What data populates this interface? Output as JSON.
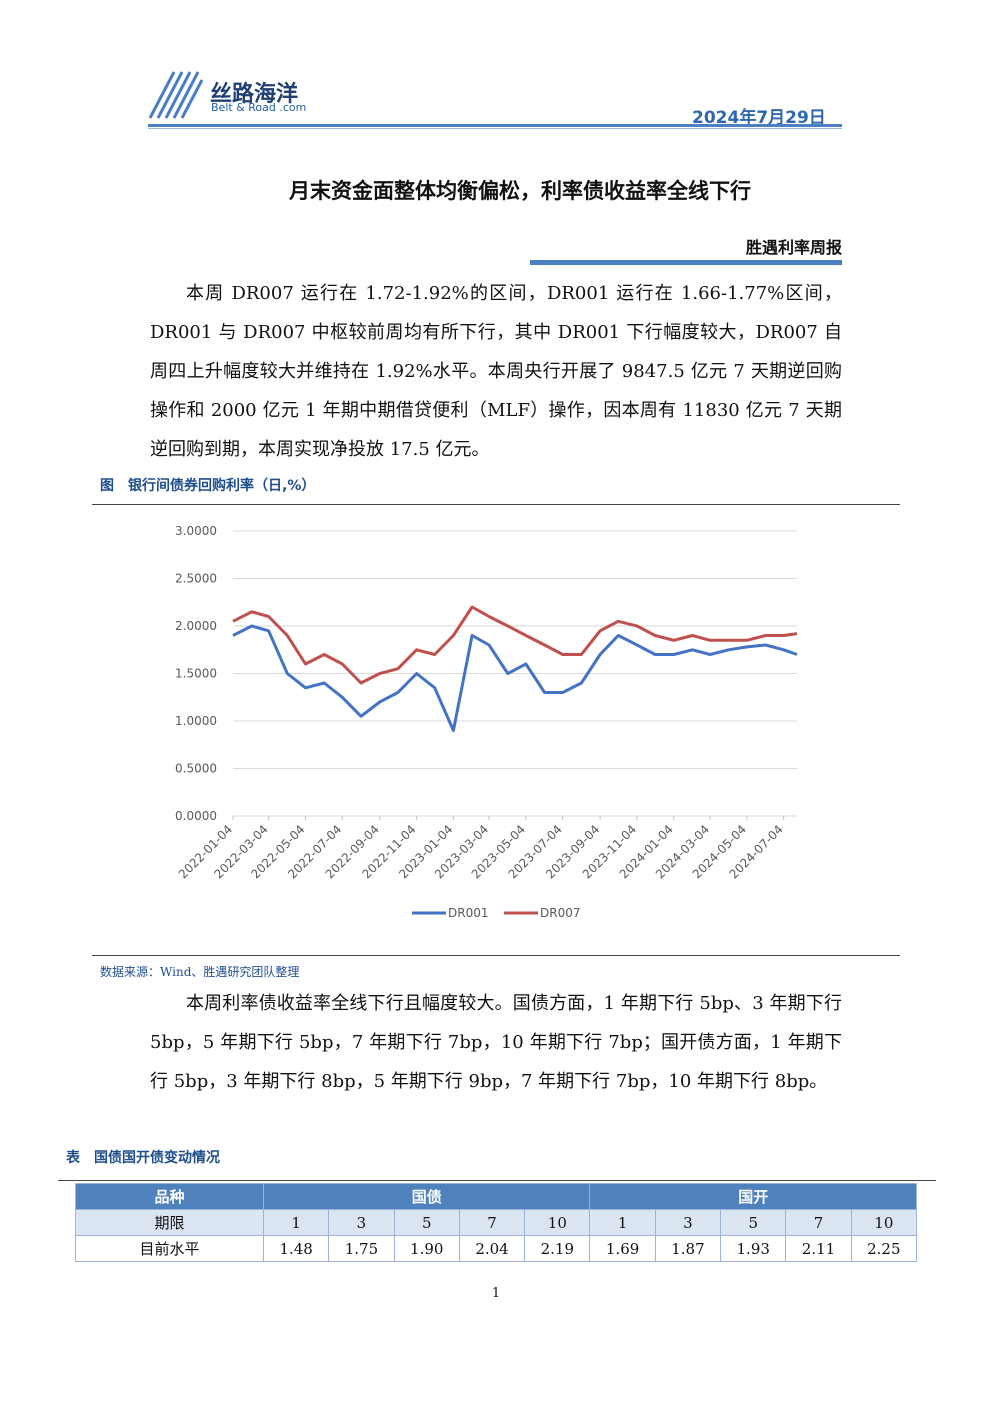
{
  "header": {
    "brand": "丝路海洋",
    "brand_sub": "Belt & Road .com",
    "date": "2024年7月29日",
    "title": "月末资金面整体均衡偏松，利率债收益率全线下行",
    "report": "胜遇利率周报"
  },
  "paragraphs": [
    "本周 DR007 运行在 1.72-1.92%的区间，DR001 运行在 1.66-1.77%区间，DR001 与 DR007 中枢较前周均有所下行，其中 DR001 下行幅度较大，DR007 自周四上升幅度较大并维持在 1.92%水平。本周央行开展了 9847.5 亿元 7 天期逆回购操作和 2000 亿元 1 年期中期借贷便利（MLF）操作，因本周有 11830 亿元 7 天期逆回购到期，本周实现净投放 17.5 亿元。",
    "本周利率债收益率全线下行且幅度较大。国债方面，1 年期下行 5bp、3 年期下行 5bp，5 年期下行 5bp，7 年期下行 7bp，10 年期下行 7bp；国开债方面，1 年期下行 5bp，3 年期下行 8bp，5 年期下行 9bp，7 年期下行 7bp，10 年期下行 8bp。"
  ],
  "figure_caption": "图　银行间债券回购利率（日,%）",
  "source": "数据来源：Wind、胜遇研究团队整理",
  "chart_data": {
    "type": "line",
    "x": [
      "2022-01-04",
      "2022-02-04",
      "2022-03-04",
      "2022-04-04",
      "2022-05-04",
      "2022-06-04",
      "2022-07-04",
      "2022-08-04",
      "2022-09-04",
      "2022-10-04",
      "2022-11-04",
      "2022-12-04",
      "2023-01-04",
      "2023-02-04",
      "2023-03-04",
      "2023-04-04",
      "2023-05-04",
      "2023-06-04",
      "2023-07-04",
      "2023-08-04",
      "2023-09-04",
      "2023-10-04",
      "2023-11-04",
      "2023-12-04",
      "2024-01-04",
      "2024-02-04",
      "2024-03-04",
      "2024-04-04",
      "2024-05-04",
      "2024-06-04",
      "2024-07-04",
      "2024-07-26"
    ],
    "series": [
      {
        "name": "DR001",
        "color": "#4472c4",
        "values": [
          1.9,
          2.0,
          1.95,
          1.5,
          1.35,
          1.4,
          1.25,
          1.05,
          1.2,
          1.3,
          1.5,
          1.35,
          0.9,
          1.9,
          1.8,
          1.5,
          1.6,
          1.3,
          1.3,
          1.4,
          1.7,
          1.9,
          1.8,
          1.7,
          1.7,
          1.75,
          1.7,
          1.75,
          1.78,
          1.8,
          1.75,
          1.7
        ]
      },
      {
        "name": "DR007",
        "color": "#c0504d",
        "values": [
          2.05,
          2.15,
          2.1,
          1.9,
          1.6,
          1.7,
          1.6,
          1.4,
          1.5,
          1.55,
          1.75,
          1.7,
          1.9,
          2.2,
          2.1,
          2.0,
          1.9,
          1.8,
          1.7,
          1.7,
          1.95,
          2.05,
          2.0,
          1.9,
          1.85,
          1.9,
          1.85,
          1.85,
          1.85,
          1.9,
          1.9,
          1.92
        ]
      }
    ],
    "xlim": [
      "2022-01-04",
      "2024-07-26"
    ],
    "xticks": [
      "2022-01-04",
      "2022-03-04",
      "2022-05-04",
      "2022-07-04",
      "2022-09-04",
      "2022-11-04",
      "2023-01-04",
      "2023-03-04",
      "2023-05-04",
      "2023-07-04",
      "2023-09-04",
      "2023-11-04",
      "2024-01-04",
      "2024-03-04",
      "2024-05-04",
      "2024-07-04"
    ],
    "ylim": [
      0,
      3
    ],
    "yticks": [
      {
        "value": 0,
        "label": "0.0000"
      },
      {
        "value": 0.5,
        "label": "0.5000"
      },
      {
        "value": 1,
        "label": "1.0000"
      },
      {
        "value": 1.5,
        "label": "1.5000"
      },
      {
        "value": 2,
        "label": "2.0000"
      },
      {
        "value": 2.5,
        "label": "2.5000"
      },
      {
        "value": 3,
        "label": "3.0000"
      }
    ],
    "grid": true,
    "legend": "bottom"
  },
  "table_caption": "表　国债国开债变动情况",
  "table": {
    "header": [
      "品种",
      "国债",
      "国开"
    ],
    "rows": [
      [
        "期限",
        "1",
        "3",
        "5",
        "7",
        "10",
        "1",
        "3",
        "5",
        "7",
        "10"
      ],
      [
        "目前水平",
        "1.48",
        "1.75",
        "1.90",
        "2.04",
        "2.19",
        "1.69",
        "1.87",
        "1.93",
        "2.11",
        "2.25"
      ]
    ]
  },
  "page_number": "1"
}
